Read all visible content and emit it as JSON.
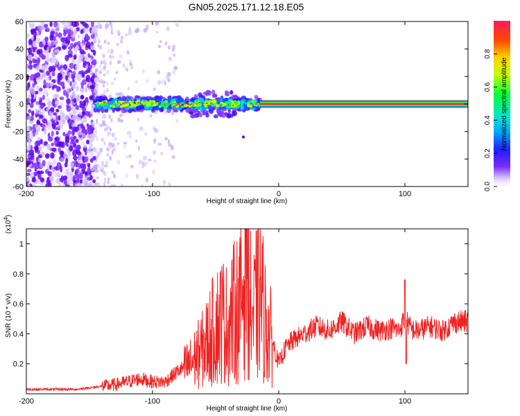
{
  "title": "GN05.2025.171.12.18.E05",
  "chart_data": [
    {
      "type": "heatmap",
      "name": "spectrogram",
      "xlabel": "Height of straight line (km)",
      "ylabel": "Frequency (Hz)",
      "xlim": [
        -200,
        150
      ],
      "ylim": [
        -60,
        60
      ],
      "xticks": [
        -200,
        -100,
        0,
        100
      ],
      "yticks": [
        -60,
        -40,
        -20,
        0,
        20,
        40,
        60
      ],
      "colorbar": {
        "label": "Normalized spectral amplitude",
        "range": [
          0,
          1
        ],
        "ticks": [
          0.0,
          0.2,
          0.4,
          0.6,
          0.8
        ]
      },
      "features": [
        {
          "kind": "scattered noise",
          "x_range": [
            -200,
            -145
          ],
          "freq_range": [
            -60,
            60
          ],
          "amplitude": 0.15
        },
        {
          "kind": "sparse noise",
          "x_range": [
            -145,
            -80
          ],
          "freq_range": [
            -60,
            60
          ],
          "amplitude": 0.05
        },
        {
          "kind": "signal band",
          "x_range": [
            -145,
            -15
          ],
          "freq_range": [
            -5,
            5
          ],
          "amplitude": 0.5
        },
        {
          "kind": "peak line",
          "x_range": [
            -15,
            150
          ],
          "freq_center": 0,
          "amplitude": 1.0
        }
      ]
    },
    {
      "type": "line",
      "name": "snr",
      "xlabel": "Height of straight line (km)",
      "ylabel": "SNR (10 * v/v)",
      "yscale_label": "(x10",
      "yscale_exponent": "4",
      "xlim": [
        -200,
        150
      ],
      "ylim": [
        0,
        1.1
      ],
      "xticks": [
        -200,
        -100,
        0,
        100
      ],
      "yticks": [
        0.2,
        0.4,
        0.6,
        0.8,
        1
      ],
      "color": "#ee2222",
      "x": [
        -200,
        -180,
        -160,
        -150,
        -140,
        -130,
        -120,
        -110,
        -100,
        -90,
        -80,
        -70,
        -60,
        -50,
        -45,
        -40,
        -35,
        -30,
        -27,
        -25,
        -23,
        -20,
        -15,
        -10,
        -5,
        0,
        5,
        10,
        20,
        30,
        40,
        50,
        60,
        70,
        80,
        90,
        95,
        100,
        105,
        110,
        120,
        130,
        140,
        150
      ],
      "y": [
        0.03,
        0.03,
        0.03,
        0.04,
        0.05,
        0.06,
        0.08,
        0.1,
        0.08,
        0.08,
        0.15,
        0.2,
        0.3,
        0.45,
        0.5,
        0.45,
        0.55,
        0.6,
        0.8,
        1.05,
        0.6,
        0.5,
        0.7,
        0.45,
        0.35,
        0.2,
        0.3,
        0.35,
        0.4,
        0.45,
        0.42,
        0.48,
        0.4,
        0.45,
        0.42,
        0.44,
        0.42,
        0.5,
        0.43,
        0.42,
        0.45,
        0.42,
        0.48,
        0.48
      ]
    }
  ]
}
